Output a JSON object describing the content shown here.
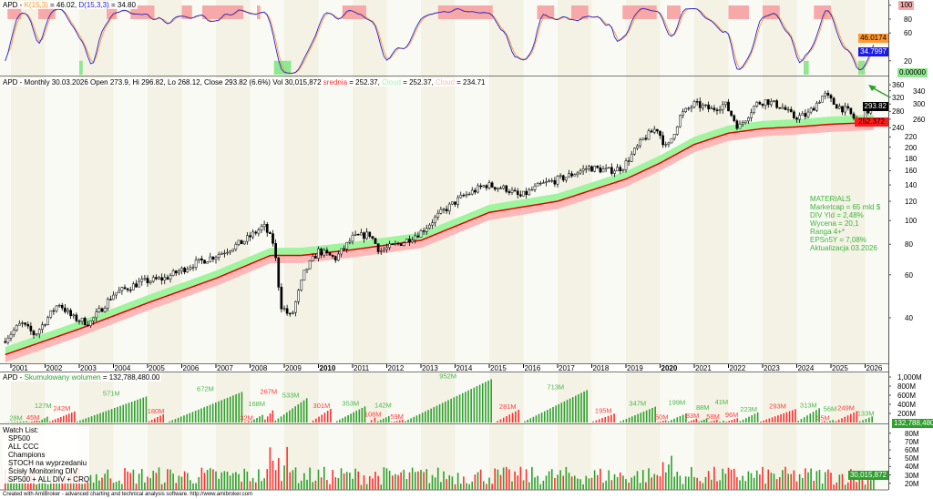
{
  "symbol": "APD",
  "stoch_header": {
    "prefix": "APD - ",
    "k_label": "K(15,3)",
    "k_value": " = 46.02, ",
    "d_label": "D(15,3,3)",
    "d_value": " = 34.80"
  },
  "price_header": {
    "prefix": "APD - Monthly 30.03.2026 Open 273.9, Hi 296.82, Lo 268.12, Close 293.82 (6.6%) Vol 30,015,872 ",
    "ma_label": "srednia",
    "ma_value": " = 252.37, ",
    "cloud_up_label": "Cloud",
    "cloud_up_value": " = 252.37, ",
    "cloud_dn_label": "Cloud",
    "cloud_dn_value": " = 234.71"
  },
  "cumvol_header": {
    "prefix": "APD - ",
    "label": "Skumulowany wolumen",
    "value": " = 132,788,480.00"
  },
  "stoch_axis": {
    "ticks": [
      "100",
      "80",
      "60",
      "20"
    ],
    "k_tag": "46.0174",
    "d_tag": "34.7997",
    "zero_tag": "0.00000"
  },
  "price_axis": {
    "ticks": [
      360,
      340,
      320,
      300,
      280,
      260,
      240,
      220,
      200,
      180,
      160,
      140,
      120,
      100,
      80,
      60,
      40
    ],
    "close_tag": "293.82",
    "ma_tag": "252.372"
  },
  "cumvol_axis": {
    "ticks": [
      "1,000M",
      "800M",
      "600M",
      "400M",
      "200M"
    ],
    "tag": "132,788,480"
  },
  "vol_axis": {
    "ticks": [
      "80M",
      "70M",
      "60M",
      "50M",
      "40M",
      "30M",
      "20M"
    ],
    "tag": "30,015,872"
  },
  "years": [
    "2001",
    "2002",
    "2003",
    "2004",
    "2005",
    "2006",
    "2007",
    "2008",
    "2009",
    "2010",
    "2011",
    "2012",
    "2013",
    "2014",
    "2015",
    "2016",
    "2017",
    "2018",
    "2019",
    "2020",
    "2021",
    "2022",
    "2023",
    "2024",
    "2025",
    "2026"
  ],
  "info": [
    "MATERIALS",
    "Marketcap = 65 mld $",
    "DIV Yld = 2,48%",
    "Wycena = 20,1",
    "Ranga 4+*",
    "EPSn5Y = 7,08%",
    "Aktualizacja 03.2026"
  ],
  "watch_list": {
    "title": "Watch List:",
    "items": [
      "SP500",
      "ALL CCC",
      "Champions",
      "STOCH na wyprzedaniu",
      "Ścisły Monitoring DIV",
      "SP500 + ALL DIV + CRQ"
    ]
  },
  "footer": "Created with AmiBroker - advanced charting and technical analysis software. http://www.amibroker.com",
  "colors": {
    "green": "#2ca02c",
    "red": "#ff3030",
    "k": "#ff9933",
    "d": "#2222dd",
    "cloud_up": "#9ef59e",
    "cloud_dn": "#ffb8b8",
    "band_a": "#f3f2e4",
    "band_b": "#fafaf4"
  },
  "chart_data": {
    "type": "candlestick",
    "title": "APD - Monthly",
    "scale": "log",
    "ylim": [
      30,
      370
    ],
    "price_anchors": [
      [
        2000.75,
        32
      ],
      [
        2001.3,
        38
      ],
      [
        2001.7,
        34
      ],
      [
        2002.4,
        46
      ],
      [
        2002.8,
        40
      ],
      [
        2003.3,
        38
      ],
      [
        2004.0,
        50
      ],
      [
        2004.8,
        56
      ],
      [
        2005.5,
        58
      ],
      [
        2006.3,
        66
      ],
      [
        2007.0,
        72
      ],
      [
        2007.8,
        82
      ],
      [
        2008.4,
        95
      ],
      [
        2008.7,
        80
      ],
      [
        2008.9,
        45
      ],
      [
        2009.2,
        40
      ],
      [
        2009.6,
        62
      ],
      [
        2010.0,
        75
      ],
      [
        2010.5,
        70
      ],
      [
        2011.0,
        85
      ],
      [
        2011.5,
        88
      ],
      [
        2011.8,
        75
      ],
      [
        2012.5,
        82
      ],
      [
        2013.0,
        90
      ],
      [
        2013.6,
        108
      ],
      [
        2014.2,
        125
      ],
      [
        2014.9,
        140
      ],
      [
        2015.5,
        135
      ],
      [
        2015.9,
        125
      ],
      [
        2016.5,
        140
      ],
      [
        2017.2,
        150
      ],
      [
        2017.9,
        165
      ],
      [
        2018.5,
        160
      ],
      [
        2018.9,
        165
      ],
      [
        2019.5,
        215
      ],
      [
        2019.9,
        240
      ],
      [
        2020.2,
        195
      ],
      [
        2020.6,
        270
      ],
      [
        2021.0,
        300
      ],
      [
        2021.5,
        285
      ],
      [
        2021.9,
        300
      ],
      [
        2022.3,
        240
      ],
      [
        2022.8,
        300
      ],
      [
        2023.1,
        310
      ],
      [
        2023.6,
        290
      ],
      [
        2023.9,
        265
      ],
      [
        2024.3,
        270
      ],
      [
        2024.8,
        330
      ],
      [
        2025.1,
        300
      ],
      [
        2025.5,
        280
      ],
      [
        2025.8,
        250
      ],
      [
        2026.0,
        275
      ],
      [
        2026.25,
        293.82
      ]
    ],
    "ma_anchors": [
      [
        2000.75,
        28
      ],
      [
        2003.0,
        36
      ],
      [
        2005.0,
        46
      ],
      [
        2007.0,
        58
      ],
      [
        2008.6,
        72
      ],
      [
        2009.5,
        72
      ],
      [
        2011.0,
        76
      ],
      [
        2013.0,
        83
      ],
      [
        2015.0,
        108
      ],
      [
        2017.0,
        120
      ],
      [
        2019.0,
        148
      ],
      [
        2020.0,
        172
      ],
      [
        2021.0,
        205
      ],
      [
        2022.0,
        228
      ],
      [
        2023.0,
        238
      ],
      [
        2024.0,
        242
      ],
      [
        2025.0,
        248
      ],
      [
        2026.25,
        252.37
      ]
    ],
    "last_close": 293.82,
    "ma_last": 252.37,
    "cloud_up_last": 252.37,
    "cloud_dn_last": 234.71,
    "stoch_last": {
      "k": 46.02,
      "d": 34.8
    },
    "stoch_overbought_zones": [
      [
        2000.9,
        2001.3
      ],
      [
        2001.8,
        2002.3
      ],
      [
        2003.8,
        2004.1
      ],
      [
        2004.5,
        2005.2
      ],
      [
        2006.0,
        2006.3
      ],
      [
        2006.6,
        2007.8
      ],
      [
        2008.2,
        2008.3
      ],
      [
        2010.7,
        2011.4
      ],
      [
        2013.5,
        2015.1
      ],
      [
        2016.4,
        2016.9
      ],
      [
        2017.4,
        2017.9
      ],
      [
        2018.9,
        2019.9
      ],
      [
        2020.2,
        2020.6
      ],
      [
        2022.0,
        2022.6
      ],
      [
        2023.0,
        2023.5
      ],
      [
        2024.5,
        2025.0
      ]
    ],
    "stoch_oversold_zones": [
      [
        2003.0,
        2003.1
      ],
      [
        2008.7,
        2009.2
      ],
      [
        2024.2,
        2024.35
      ],
      [
        2025.8,
        2026.0
      ]
    ],
    "cumvol_segments": [
      {
        "s": 2000.8,
        "e": 2001.5,
        "v": 28,
        "c": "g",
        "label": "28M"
      },
      {
        "s": 2001.5,
        "e": 2001.8,
        "v": 45,
        "c": "r",
        "label": "45M"
      },
      {
        "s": 2001.8,
        "e": 2002.1,
        "v": 127,
        "c": "g",
        "label": "127M"
      },
      {
        "s": 2002.1,
        "e": 2002.9,
        "v": 242,
        "c": "r",
        "label": "242M"
      },
      {
        "s": 2002.9,
        "e": 2005.0,
        "v": 571,
        "c": "g",
        "label": "571M"
      },
      {
        "s": 2005.0,
        "e": 2005.5,
        "v": 180,
        "c": "r",
        "label": "180M"
      },
      {
        "s": 2005.6,
        "e": 2007.8,
        "v": 672,
        "c": "g",
        "label": "672M"
      },
      {
        "s": 2007.8,
        "e": 2008.0,
        "v": 32,
        "c": "r",
        "label": "32M"
      },
      {
        "s": 2008.0,
        "e": 2008.4,
        "v": 168,
        "c": "g",
        "label": "168M"
      },
      {
        "s": 2008.4,
        "e": 2008.7,
        "v": 267,
        "c": "r",
        "label": "267M"
      },
      {
        "s": 2008.7,
        "e": 2009.7,
        "v": 533,
        "c": "g",
        "label": "533M"
      },
      {
        "s": 2009.8,
        "e": 2010.4,
        "v": 301,
        "c": "r",
        "label": "301M"
      },
      {
        "s": 2010.5,
        "e": 2011.4,
        "v": 353,
        "c": "g",
        "label": "353M"
      },
      {
        "s": 2011.5,
        "e": 2011.7,
        "v": 108,
        "c": "r",
        "label": "108M"
      },
      {
        "s": 2011.7,
        "e": 2012.1,
        "v": 142,
        "c": "g",
        "label": "142M"
      },
      {
        "s": 2012.1,
        "e": 2012.5,
        "v": 59,
        "c": "r",
        "label": "59M"
      },
      {
        "s": 2012.5,
        "e": 2015.1,
        "v": 952,
        "c": "g",
        "label": "952M"
      },
      {
        "s": 2015.2,
        "e": 2015.9,
        "v": 281,
        "c": "r",
        "label": "281M"
      },
      {
        "s": 2016.0,
        "e": 2017.9,
        "v": 713,
        "c": "g",
        "label": "713M"
      },
      {
        "s": 2018.0,
        "e": 2018.7,
        "v": 195,
        "c": "r",
        "label": "195M"
      },
      {
        "s": 2018.8,
        "e": 2019.9,
        "v": 347,
        "c": "g",
        "label": "347M"
      },
      {
        "s": 2019.9,
        "e": 2020.2,
        "v": 50,
        "c": "r",
        "label": "50M"
      },
      {
        "s": 2020.2,
        "e": 2020.8,
        "v": 199,
        "c": "g",
        "label": "199M"
      },
      {
        "s": 2020.8,
        "e": 2021.1,
        "v": 83,
        "c": "r",
        "label": "83M"
      },
      {
        "s": 2021.1,
        "e": 2021.4,
        "v": 88,
        "c": "g",
        "label": "88M"
      },
      {
        "s": 2021.4,
        "e": 2021.7,
        "v": 58,
        "c": "r",
        "label": "58M"
      },
      {
        "s": 2021.7,
        "e": 2021.9,
        "v": 41,
        "c": "g",
        "label": "41M"
      },
      {
        "s": 2021.9,
        "e": 2022.3,
        "v": 96,
        "c": "r",
        "label": "96M"
      },
      {
        "s": 2022.3,
        "e": 2022.9,
        "v": 223,
        "c": "g",
        "label": "223M"
      },
      {
        "s": 2022.9,
        "e": 2024.0,
        "v": 293,
        "c": "r",
        "label": "293M"
      },
      {
        "s": 2024.0,
        "e": 2024.7,
        "v": 313,
        "c": "g",
        "label": "313M"
      },
      {
        "s": 2024.7,
        "e": 2024.85,
        "v": 35,
        "c": "r",
        "label": "35M"
      },
      {
        "s": 2024.85,
        "e": 2025.1,
        "v": 56,
        "c": "g",
        "label": "56M"
      },
      {
        "s": 2025.1,
        "e": 2025.8,
        "v": 249,
        "c": "r",
        "label": "249M"
      },
      {
        "s": 2025.8,
        "e": 2026.25,
        "v": 133,
        "c": "g",
        "label": "133M"
      }
    ],
    "volume_unit": "M",
    "volume_last": 30.015872,
    "volume_ylim": [
      0,
      85
    ]
  }
}
